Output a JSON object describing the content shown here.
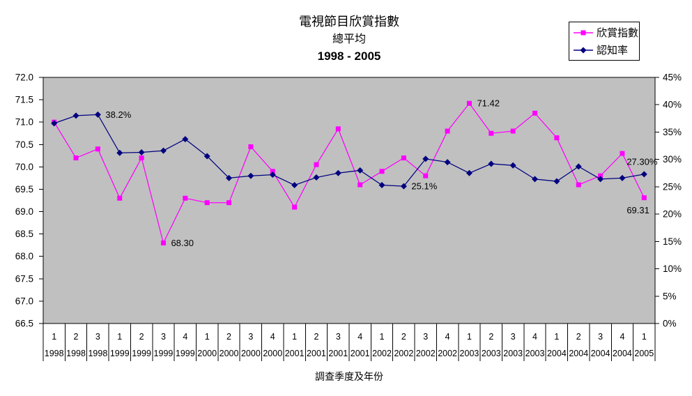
{
  "title": {
    "line1": "電視節目欣賞指數",
    "line2": "總平均",
    "line3": "1998 - 2005"
  },
  "x_axis_title": "調查季度及年份",
  "legend": {
    "items": [
      {
        "label": "欣賞指數",
        "color": "#FF00FF",
        "marker": "square"
      },
      {
        "label": "認知率",
        "color": "#000080",
        "marker": "diamond"
      }
    ]
  },
  "colors": {
    "appreciation_series": "#FF00FF",
    "recognition_series": "#000080",
    "plot_background": "#C0C0C0",
    "axis_line": "#000000"
  },
  "chart_data": {
    "type": "line",
    "title": "電視節目欣賞指數 總平均 1998 - 2005",
    "xlabel": "調查季度及年份",
    "grid": false,
    "legend_position": "top-right",
    "plot_background": "#C0C0C0",
    "x_quarters": [
      "1",
      "2",
      "3",
      "1",
      "2",
      "3",
      "4",
      "1",
      "2",
      "3",
      "4",
      "1",
      "2",
      "3",
      "4",
      "1",
      "2",
      "3",
      "4",
      "1",
      "2",
      "3",
      "4",
      "1",
      "2",
      "3",
      "4",
      "1"
    ],
    "x_years": [
      "1998",
      "1998",
      "1998",
      "1999",
      "1999",
      "1999",
      "1999",
      "2000",
      "2000",
      "2000",
      "2000",
      "2001",
      "2001",
      "2001",
      "2001",
      "2002",
      "2002",
      "2002",
      "2002",
      "2003",
      "2003",
      "2003",
      "2003",
      "2004",
      "2004",
      "2004",
      "2004",
      "2005"
    ],
    "left_axis": {
      "min": 66.5,
      "max": 72.0,
      "step": 0.5,
      "tick_labels": [
        "72.0",
        "71.5",
        "71.0",
        "70.5",
        "70.0",
        "69.5",
        "69.0",
        "68.5",
        "68.0",
        "67.5",
        "67.0",
        "66.5"
      ]
    },
    "right_axis": {
      "min": 0,
      "max": 45,
      "step": 5,
      "tick_labels": [
        "45%",
        "40%",
        "35%",
        "30%",
        "25%",
        "20%",
        "15%",
        "10%",
        "5%",
        "0%"
      ]
    },
    "series": [
      {
        "name": "欣賞指數",
        "axis": "left",
        "color": "#FF00FF",
        "marker": "square",
        "values": [
          71.0,
          70.2,
          70.4,
          69.3,
          70.2,
          68.3,
          69.3,
          69.2,
          69.2,
          70.45,
          69.9,
          69.1,
          70.05,
          70.85,
          69.6,
          69.9,
          70.2,
          69.8,
          70.8,
          71.42,
          70.75,
          70.8,
          71.2,
          70.65,
          69.6,
          69.8,
          70.3,
          69.31
        ]
      },
      {
        "name": "認知率",
        "axis": "right",
        "color": "#000080",
        "marker": "diamond",
        "unit": "%",
        "values": [
          36.6,
          38.0,
          38.2,
          31.2,
          31.3,
          31.6,
          33.7,
          30.6,
          26.6,
          27.0,
          27.2,
          25.3,
          26.7,
          27.5,
          28.0,
          25.3,
          25.1,
          30.1,
          29.5,
          27.5,
          29.2,
          28.9,
          26.4,
          26.0,
          28.7,
          26.4,
          26.6,
          27.3
        ]
      }
    ],
    "annotations": [
      {
        "text": "38.2%",
        "series": 1,
        "index": 2,
        "placement": "right"
      },
      {
        "text": "68.30",
        "series": 0,
        "index": 5,
        "placement": "right"
      },
      {
        "text": "25.1%",
        "series": 1,
        "index": 16,
        "placement": "right"
      },
      {
        "text": "71.42",
        "series": 0,
        "index": 19,
        "placement": "right"
      },
      {
        "text": "27.30%",
        "series": 1,
        "index": 27,
        "placement": "above-left"
      },
      {
        "text": "69.31",
        "series": 0,
        "index": 27,
        "placement": "below-left"
      }
    ]
  }
}
